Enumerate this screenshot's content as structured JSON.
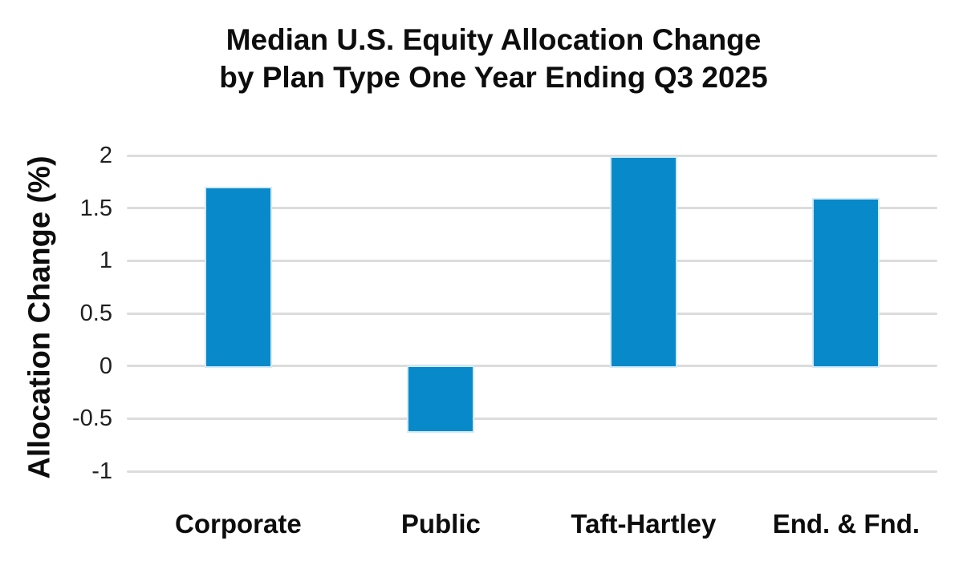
{
  "chart": {
    "title_line1": "Median U.S. Equity Allocation Change",
    "title_line2": "by Plan Type One Year Ending Q3 2025",
    "ylabel": "Allocation Change (%)"
  },
  "chart_data": {
    "type": "bar",
    "title": "Median U.S. Equity Allocation Change by Plan Type One Year Ending Q3 2025",
    "categories": [
      "Corporate",
      "Public",
      "Taft-Hartley",
      "End. & Fnd."
    ],
    "values": [
      1.69,
      -0.61,
      1.98,
      1.58
    ],
    "xlabel": "",
    "ylabel": "Allocation Change (%)",
    "ylim": [
      -1,
      2
    ],
    "yticks": [
      2,
      1.5,
      1,
      0.5,
      0,
      -0.5,
      -1
    ],
    "grid": true,
    "legend": "none",
    "bar_color": "#0789ca",
    "bar_edge_color": "#d2eaf8",
    "gridline_color": "#dcdcdc",
    "text_color": "#0d0d0d"
  }
}
